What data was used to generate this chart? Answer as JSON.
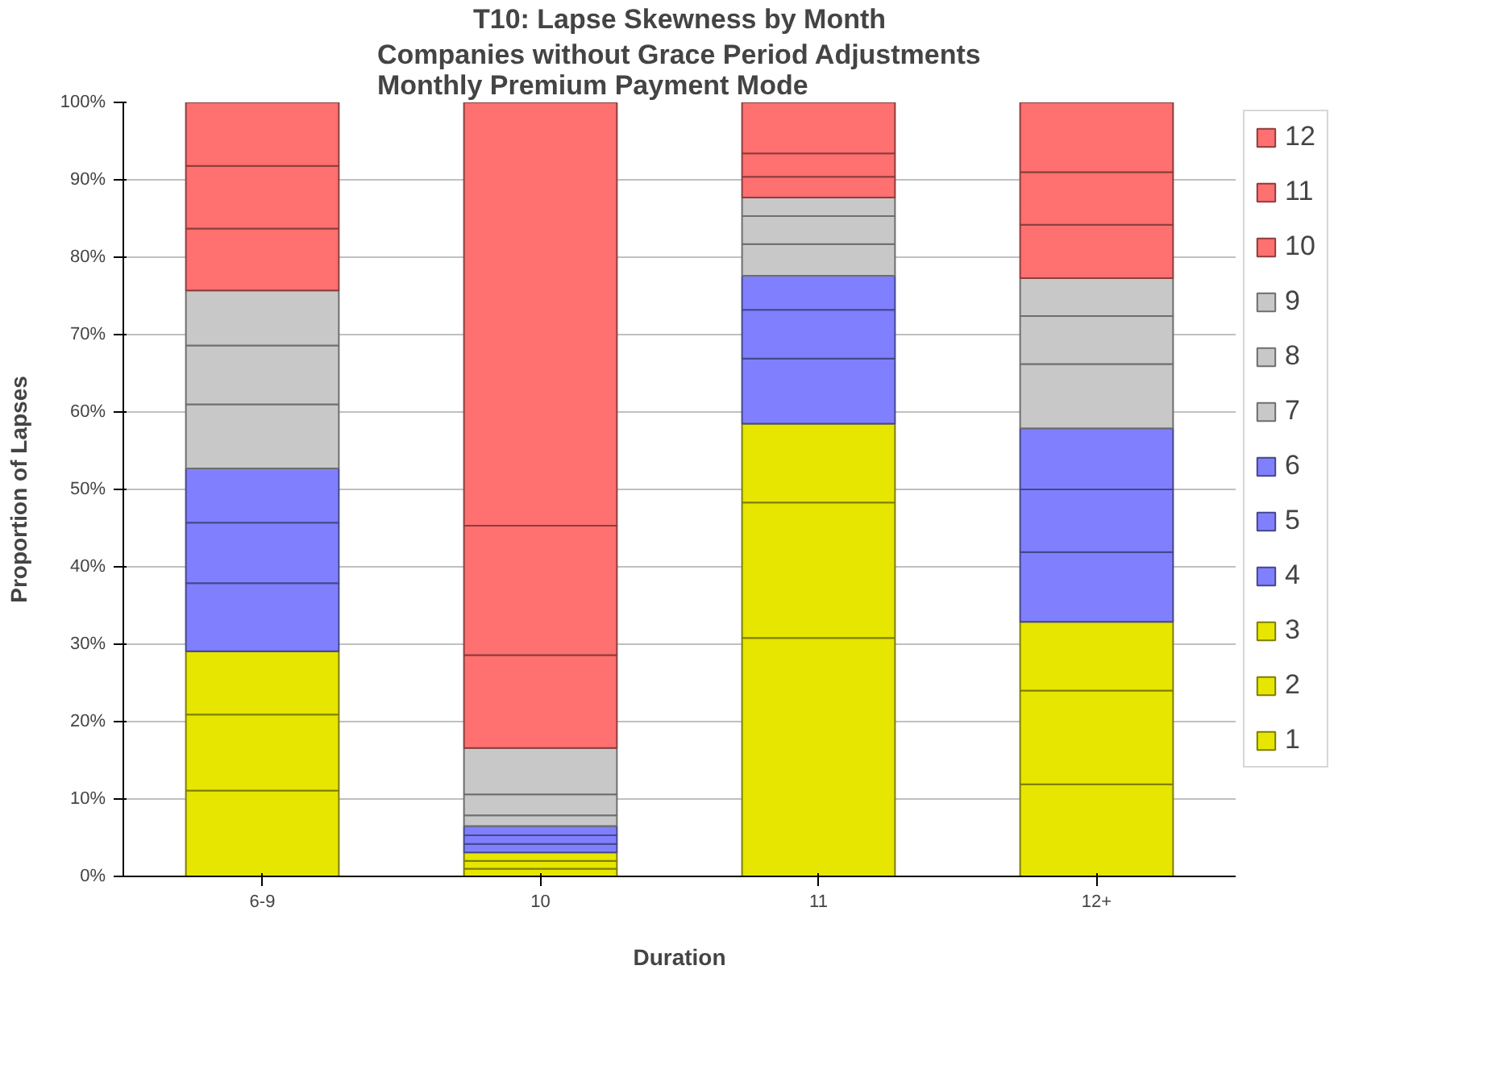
{
  "chart_data": {
    "type": "bar",
    "stacked": true,
    "title": "T10: Lapse Skewness by Month",
    "subtitle": "Companies without Grace Period Adjustments\nMonthly Premium Payment Mode",
    "xlabel": "Duration",
    "ylabel": "Proportion of Lapses",
    "categories": [
      "6-9",
      "10",
      "11",
      "12+"
    ],
    "series": [
      {
        "name": "1",
        "color": "#e6e600",
        "values": [
          11.1,
          1.0,
          30.8,
          11.9
        ]
      },
      {
        "name": "2",
        "color": "#e6e600",
        "values": [
          9.8,
          1.0,
          17.5,
          12.1
        ]
      },
      {
        "name": "3",
        "color": "#e6e600",
        "values": [
          8.2,
          1.1,
          10.2,
          8.9
        ]
      },
      {
        "name": "4",
        "color": "#8080ff",
        "values": [
          8.8,
          1.1,
          8.4,
          9.0
        ]
      },
      {
        "name": "5",
        "color": "#8080ff",
        "values": [
          7.8,
          1.1,
          6.3,
          8.1
        ]
      },
      {
        "name": "6",
        "color": "#8080ff",
        "values": [
          7.0,
          1.2,
          4.4,
          7.9
        ]
      },
      {
        "name": "7",
        "color": "#c8c8c8",
        "values": [
          8.3,
          1.4,
          4.1,
          8.3
        ]
      },
      {
        "name": "8",
        "color": "#c8c8c8",
        "values": [
          7.6,
          2.7,
          3.6,
          6.2
        ]
      },
      {
        "name": "9",
        "color": "#c8c8c8",
        "values": [
          7.1,
          6.0,
          2.4,
          4.9
        ]
      },
      {
        "name": "10",
        "color": "#ff7070",
        "values": [
          8.0,
          12.0,
          2.7,
          6.9
        ]
      },
      {
        "name": "11",
        "color": "#ff7070",
        "values": [
          8.1,
          16.7,
          3.0,
          6.8
        ]
      },
      {
        "name": "12",
        "color": "#ff7070",
        "values": [
          8.2,
          54.7,
          6.6,
          9.0
        ]
      }
    ],
    "ylim": [
      0,
      100
    ],
    "yticks": [
      {
        "value": 0,
        "label": "0%"
      },
      {
        "value": 10,
        "label": "10%"
      },
      {
        "value": 20,
        "label": "20%"
      },
      {
        "value": 30,
        "label": "30%"
      },
      {
        "value": 40,
        "label": "40%"
      },
      {
        "value": 50,
        "label": "50%"
      },
      {
        "value": 60,
        "label": "60%"
      },
      {
        "value": 70,
        "label": "70%"
      },
      {
        "value": 80,
        "label": "80%"
      },
      {
        "value": 90,
        "label": "90%"
      },
      {
        "value": 100,
        "label": "100%"
      }
    ],
    "grid": "y",
    "legend": "right"
  }
}
